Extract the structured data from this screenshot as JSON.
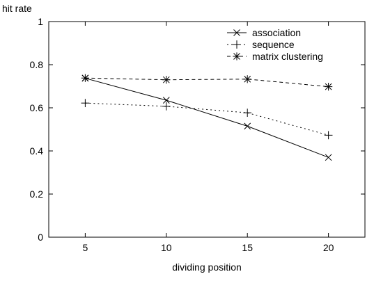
{
  "chart_data": {
    "type": "line",
    "title": "",
    "xlabel": "dividing position",
    "ylabel": "hit rate",
    "x": [
      5,
      10,
      15,
      20
    ],
    "xticks": [
      5,
      10,
      15,
      20
    ],
    "yticks": [
      0,
      0.2,
      0.4,
      0.6,
      0.8,
      1
    ],
    "ytick_labels": [
      "0",
      "0.2",
      "0.4",
      "0.6",
      "0.8",
      "1"
    ],
    "xlim": [
      2.75,
      22.25
    ],
    "ylim": [
      0,
      1
    ],
    "grid": false,
    "legend_position": "top-right",
    "series": [
      {
        "name": "association",
        "values": [
          0.737,
          0.635,
          0.515,
          0.37
        ],
        "line_style": "solid",
        "marker": "x"
      },
      {
        "name": "sequence",
        "values": [
          0.622,
          0.607,
          0.577,
          0.473
        ],
        "line_style": "dotted",
        "marker": "+"
      },
      {
        "name": "matrix clustering",
        "values": [
          0.738,
          0.73,
          0.733,
          0.698
        ],
        "line_style": "dashed",
        "marker": "asterisk"
      }
    ]
  }
}
